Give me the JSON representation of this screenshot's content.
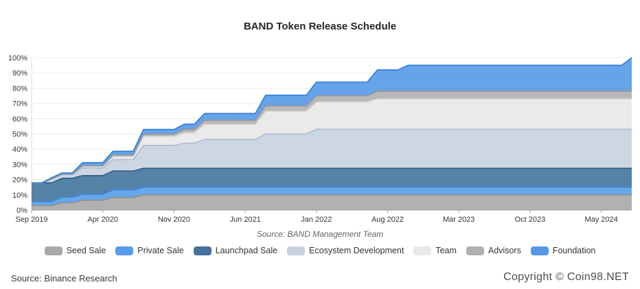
{
  "footer": {
    "source_label": "Source: Binance Research",
    "copyright": "Copyright © Coin98.NET"
  },
  "chart_data": {
    "type": "area",
    "stacked": true,
    "title": "BAND Token Release Schedule",
    "source_note": "Source: BAND Management Team",
    "legend_position": "bottom",
    "grid": true,
    "ylim": [
      0,
      100
    ],
    "y_ticks": [
      0,
      10,
      20,
      30,
      40,
      50,
      60,
      70,
      80,
      90,
      100
    ],
    "y_tick_suffix": "%",
    "x_unit": "month",
    "x_start": "Sep 2019",
    "x_end": "Aug 2024",
    "x_tick_labels": [
      "Sep 2019",
      "Apr 2020",
      "Nov 2020",
      "Jun 2021",
      "Jan 2022",
      "Aug 2022",
      "Mar 2023",
      "Oct 2023",
      "May 2024"
    ],
    "x_tick_indices": [
      0,
      7,
      14,
      21,
      28,
      35,
      42,
      49,
      56
    ],
    "series": [
      {
        "name": "Seed Sale",
        "total_allocation_pct": 10,
        "fill": "#a9a9a9",
        "stroke": "#8f8f8f",
        "values": [
          3,
          3,
          3,
          4.75,
          4.75,
          6.5,
          6.5,
          6.5,
          8.25,
          8.25,
          8.25,
          10,
          10,
          10,
          10,
          10,
          10,
          10,
          10,
          10,
          10,
          10,
          10,
          10,
          10,
          10,
          10,
          10,
          10,
          10,
          10,
          10,
          10,
          10,
          10,
          10,
          10,
          10,
          10,
          10,
          10,
          10,
          10,
          10,
          10,
          10,
          10,
          10,
          10,
          10,
          10,
          10,
          10,
          10,
          10,
          10,
          10,
          10,
          10,
          10
        ]
      },
      {
        "name": "Private Sale",
        "total_allocation_pct": 5,
        "fill": "#559de8",
        "stroke": "#3a86d6",
        "values": [
          2.5,
          2.5,
          2.5,
          3.75,
          3.75,
          3.75,
          3.75,
          3.75,
          5,
          5,
          5,
          5,
          5,
          5,
          5,
          5,
          5,
          5,
          5,
          5,
          5,
          5,
          5,
          5,
          5,
          5,
          5,
          5,
          5,
          5,
          5,
          5,
          5,
          5,
          5,
          5,
          5,
          5,
          5,
          5,
          5,
          5,
          5,
          5,
          5,
          5,
          5,
          5,
          5,
          5,
          5,
          5,
          5,
          5,
          5,
          5,
          5,
          5,
          5,
          5
        ]
      },
      {
        "name": "Launchpad Sale",
        "total_allocation_pct": 12.37,
        "fill": "#44749e",
        "stroke": "#2e5d85",
        "values": [
          12.37,
          12.37,
          12.37,
          12.37,
          12.37,
          12.37,
          12.37,
          12.37,
          12.37,
          12.37,
          12.37,
          12.37,
          12.37,
          12.37,
          12.37,
          12.37,
          12.37,
          12.37,
          12.37,
          12.37,
          12.37,
          12.37,
          12.37,
          12.37,
          12.37,
          12.37,
          12.37,
          12.37,
          12.37,
          12.37,
          12.37,
          12.37,
          12.37,
          12.37,
          12.37,
          12.37,
          12.37,
          12.37,
          12.37,
          12.37,
          12.37,
          12.37,
          12.37,
          12.37,
          12.37,
          12.37,
          12.37,
          12.37,
          12.37,
          12.37,
          12.37,
          12.37,
          12.37,
          12.37,
          12.37,
          12.37,
          12.37,
          12.37,
          12.37,
          12.37
        ]
      },
      {
        "name": "Ecosystem Development",
        "total_allocation_pct": 25.63,
        "fill": "#c8d1e0",
        "stroke": "#aebbd1",
        "values": [
          0,
          0,
          2.5,
          2.5,
          2.5,
          5,
          5,
          5,
          7.5,
          7.5,
          7.5,
          15,
          15,
          15,
          15,
          16.5,
          16.5,
          19,
          19,
          19,
          19,
          19,
          19,
          22.5,
          22.5,
          22.5,
          22.5,
          22.5,
          25.63,
          25.63,
          25.63,
          25.63,
          25.63,
          25.63,
          25.63,
          25.63,
          25.63,
          25.63,
          25.63,
          25.63,
          25.63,
          25.63,
          25.63,
          25.63,
          25.63,
          25.63,
          25.63,
          25.63,
          25.63,
          25.63,
          25.63,
          25.63,
          25.63,
          25.63,
          25.63,
          25.63,
          25.63,
          25.63,
          25.63,
          25.63
        ]
      },
      {
        "name": "Team",
        "total_allocation_pct": 20,
        "fill": "#e8e8e8",
        "stroke": "#cfcfcf",
        "values": [
          0,
          0,
          0,
          0,
          0,
          1,
          1,
          1,
          2,
          2,
          2,
          6,
          6,
          6,
          6,
          7,
          7,
          10,
          10,
          10,
          10,
          10,
          10,
          15,
          15,
          15,
          15,
          15,
          18,
          18,
          18,
          18,
          18,
          18,
          20,
          20,
          20,
          20,
          20,
          20,
          20,
          20,
          20,
          20,
          20,
          20,
          20,
          20,
          20,
          20,
          20,
          20,
          20,
          20,
          20,
          20,
          20,
          20,
          20,
          20
        ]
      },
      {
        "name": "Advisors",
        "total_allocation_pct": 5,
        "fill": "#b0b0b0",
        "stroke": "#969696",
        "values": [
          0,
          0,
          0,
          0,
          0,
          0.5,
          0.5,
          0.5,
          1,
          1,
          1,
          1.5,
          1.5,
          1.5,
          1.5,
          2,
          2,
          2.5,
          2.5,
          2.5,
          2.5,
          2.5,
          2.5,
          3.5,
          3.5,
          3.5,
          3.5,
          3.5,
          4,
          4,
          4,
          4,
          4,
          4,
          5,
          5,
          5,
          5,
          5,
          5,
          5,
          5,
          5,
          5,
          5,
          5,
          5,
          5,
          5,
          5,
          5,
          5,
          5,
          5,
          5,
          5,
          5,
          5,
          5,
          5
        ]
      },
      {
        "name": "Foundation",
        "total_allocation_pct": 22,
        "fill": "#5599e6",
        "stroke": "#2e7fd9",
        "values": [
          0,
          0,
          1,
          1,
          1,
          2,
          2,
          2,
          2.5,
          2.5,
          2.5,
          3,
          3,
          3,
          3,
          3.5,
          3.5,
          4.5,
          4.5,
          4.5,
          4.5,
          4.5,
          4.5,
          7,
          7,
          7,
          7,
          7,
          9,
          9,
          9,
          9,
          9,
          9,
          14,
          14,
          14,
          17,
          17,
          17,
          17,
          17,
          17,
          17,
          17,
          17,
          17,
          17,
          17,
          17,
          17,
          17,
          17,
          17,
          17,
          17,
          17,
          17,
          17,
          22
        ]
      }
    ]
  }
}
